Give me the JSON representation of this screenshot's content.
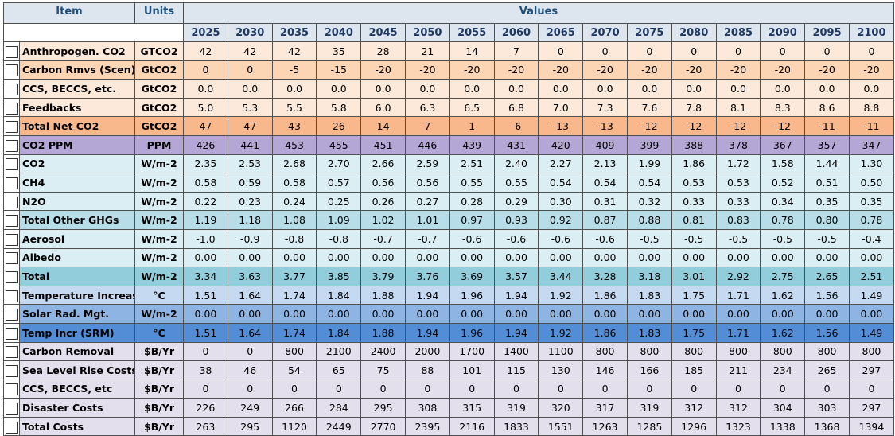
{
  "header": {
    "item_label": "Item",
    "units_label": "Units",
    "values_label": "Values",
    "years": [
      "2025",
      "2030",
      "2035",
      "2040",
      "2045",
      "2050",
      "2055",
      "2060",
      "2065",
      "2070",
      "2075",
      "2080",
      "2085",
      "2090",
      "2095",
      "2100"
    ]
  },
  "rows": [
    {
      "item": "Anthropogen. CO2",
      "unit": "GTCO2",
      "color": "#fde9d9",
      "values": [
        "42",
        "42",
        "42",
        "35",
        "28",
        "21",
        "14",
        "7",
        "0",
        "0",
        "0",
        "0",
        "0",
        "0",
        "0",
        "0"
      ]
    },
    {
      "item": "Carbon Rmvs (Scen)",
      "unit": "GtCO2",
      "color": "#fcd5b4",
      "values": [
        "0",
        "0",
        "-5",
        "-15",
        "-20",
        "-20",
        "-20",
        "-20",
        "-20",
        "-20",
        "-20",
        "-20",
        "-20",
        "-20",
        "-20",
        "-20"
      ]
    },
    {
      "item": "CCS, BECCS, etc.",
      "unit": "GtCO2",
      "color": "#fde9d9",
      "values": [
        "0.0",
        "0.0",
        "0.0",
        "0.0",
        "0.0",
        "0.0",
        "0.0",
        "0.0",
        "0.0",
        "0.0",
        "0.0",
        "0.0",
        "0.0",
        "0.0",
        "0.0",
        "0.0"
      ]
    },
    {
      "item": "Feedbacks",
      "unit": "GtCO2",
      "color": "#fde9d9",
      "values": [
        "5.0",
        "5.3",
        "5.5",
        "5.8",
        "6.0",
        "6.3",
        "6.5",
        "6.8",
        "7.0",
        "7.3",
        "7.6",
        "7.8",
        "8.1",
        "8.3",
        "8.6",
        "8.8"
      ]
    },
    {
      "item": "Total Net CO2",
      "unit": "GtCO2",
      "color": "#f8b88b",
      "values": [
        "47",
        "47",
        "43",
        "26",
        "14",
        "7",
        "1",
        "-6",
        "-13",
        "-13",
        "-12",
        "-12",
        "-12",
        "-12",
        "-11",
        "-11"
      ]
    },
    {
      "item": "CO2 PPM",
      "unit": "PPM",
      "color": "#b4a7d6",
      "values": [
        "426",
        "441",
        "453",
        "455",
        "451",
        "446",
        "439",
        "431",
        "420",
        "409",
        "399",
        "388",
        "378",
        "367",
        "357",
        "347"
      ]
    },
    {
      "item": "CO2",
      "unit": "W/m-2",
      "color": "#daeef3",
      "values": [
        "2.35",
        "2.53",
        "2.68",
        "2.70",
        "2.66",
        "2.59",
        "2.51",
        "2.40",
        "2.27",
        "2.13",
        "1.99",
        "1.86",
        "1.72",
        "1.58",
        "1.44",
        "1.30"
      ]
    },
    {
      "item": "CH4",
      "unit": "W/m-2",
      "color": "#daeef3",
      "values": [
        "0.58",
        "0.59",
        "0.58",
        "0.57",
        "0.56",
        "0.56",
        "0.55",
        "0.55",
        "0.54",
        "0.54",
        "0.54",
        "0.53",
        "0.53",
        "0.52",
        "0.51",
        "0.50"
      ]
    },
    {
      "item": "N2O",
      "unit": "W/m-2",
      "color": "#daeef3",
      "values": [
        "0.22",
        "0.23",
        "0.24",
        "0.25",
        "0.26",
        "0.27",
        "0.28",
        "0.29",
        "0.30",
        "0.31",
        "0.32",
        "0.33",
        "0.33",
        "0.34",
        "0.35",
        "0.35"
      ]
    },
    {
      "item": "Total Other GHGs",
      "unit": "W/m-2",
      "color": "#b7dee8",
      "values": [
        "1.19",
        "1.18",
        "1.08",
        "1.09",
        "1.02",
        "1.01",
        "0.97",
        "0.93",
        "0.92",
        "0.87",
        "0.88",
        "0.81",
        "0.83",
        "0.78",
        "0.80",
        "0.78"
      ]
    },
    {
      "item": "Aerosol",
      "unit": "W/m-2",
      "color": "#daeef3",
      "values": [
        "-1.0",
        "-0.9",
        "-0.8",
        "-0.8",
        "-0.7",
        "-0.7",
        "-0.6",
        "-0.6",
        "-0.6",
        "-0.6",
        "-0.5",
        "-0.5",
        "-0.5",
        "-0.5",
        "-0.5",
        "-0.4"
      ]
    },
    {
      "item": "Albedo",
      "unit": "W/m-2",
      "color": "#daeef3",
      "values": [
        "0.00",
        "0.00",
        "0.00",
        "0.00",
        "0.00",
        "0.00",
        "0.00",
        "0.00",
        "0.00",
        "0.00",
        "0.00",
        "0.00",
        "0.00",
        "0.00",
        "0.00",
        "0.00"
      ]
    },
    {
      "item": "Total",
      "unit": "W/m-2",
      "color": "#92cddc",
      "values": [
        "3.34",
        "3.63",
        "3.77",
        "3.85",
        "3.79",
        "3.76",
        "3.69",
        "3.57",
        "3.44",
        "3.28",
        "3.18",
        "3.01",
        "2.92",
        "2.75",
        "2.65",
        "2.51"
      ]
    },
    {
      "item": "Temperature Increase",
      "unit": "°C",
      "color": "#c5d9f1",
      "values": [
        "1.51",
        "1.64",
        "1.74",
        "1.84",
        "1.88",
        "1.94",
        "1.96",
        "1.94",
        "1.92",
        "1.86",
        "1.83",
        "1.75",
        "1.71",
        "1.62",
        "1.56",
        "1.49"
      ]
    },
    {
      "item": "Solar Rad. Mgt.",
      "unit": "W/m-2",
      "color": "#8db4e2",
      "values": [
        "0.00",
        "0.00",
        "0.00",
        "0.00",
        "0.00",
        "0.00",
        "0.00",
        "0.00",
        "0.00",
        "0.00",
        "0.00",
        "0.00",
        "0.00",
        "0.00",
        "0.00",
        "0.00"
      ]
    },
    {
      "item": "Temp Incr (SRM)",
      "unit": "°C",
      "color": "#538dd5",
      "values": [
        "1.51",
        "1.64",
        "1.74",
        "1.84",
        "1.88",
        "1.94",
        "1.96",
        "1.94",
        "1.92",
        "1.86",
        "1.83",
        "1.75",
        "1.71",
        "1.62",
        "1.56",
        "1.49"
      ]
    },
    {
      "item": "Carbon Removal",
      "unit": "$B/Yr",
      "color": "#e4dfec",
      "values": [
        "0",
        "0",
        "800",
        "2100",
        "2400",
        "2000",
        "1700",
        "1400",
        "1100",
        "800",
        "800",
        "800",
        "800",
        "800",
        "800",
        "800"
      ]
    },
    {
      "item": "Sea Level Rise Costs",
      "unit": "$B/Yr",
      "color": "#e4dfec",
      "values": [
        "38",
        "46",
        "54",
        "65",
        "75",
        "88",
        "101",
        "115",
        "130",
        "146",
        "166",
        "185",
        "211",
        "234",
        "265",
        "297"
      ]
    },
    {
      "item": "CCS, BECCS, etc",
      "unit": "$B/Yr",
      "color": "#e4dfec",
      "values": [
        "0",
        "0",
        "0",
        "0",
        "0",
        "0",
        "0",
        "0",
        "0",
        "0",
        "0",
        "0",
        "0",
        "0",
        "0",
        "0"
      ]
    },
    {
      "item": "Disaster Costs",
      "unit": "$B/Yr",
      "color": "#e4dfec",
      "values": [
        "226",
        "249",
        "266",
        "284",
        "295",
        "308",
        "315",
        "319",
        "320",
        "317",
        "319",
        "312",
        "312",
        "304",
        "303",
        "297"
      ]
    },
    {
      "item": "Total Costs",
      "unit": "$B/Yr",
      "color": "#e4dfec",
      "values": [
        "263",
        "295",
        "1120",
        "2449",
        "2770",
        "2395",
        "2116",
        "1833",
        "1551",
        "1263",
        "1285",
        "1296",
        "1323",
        "1338",
        "1368",
        "1394"
      ]
    }
  ]
}
